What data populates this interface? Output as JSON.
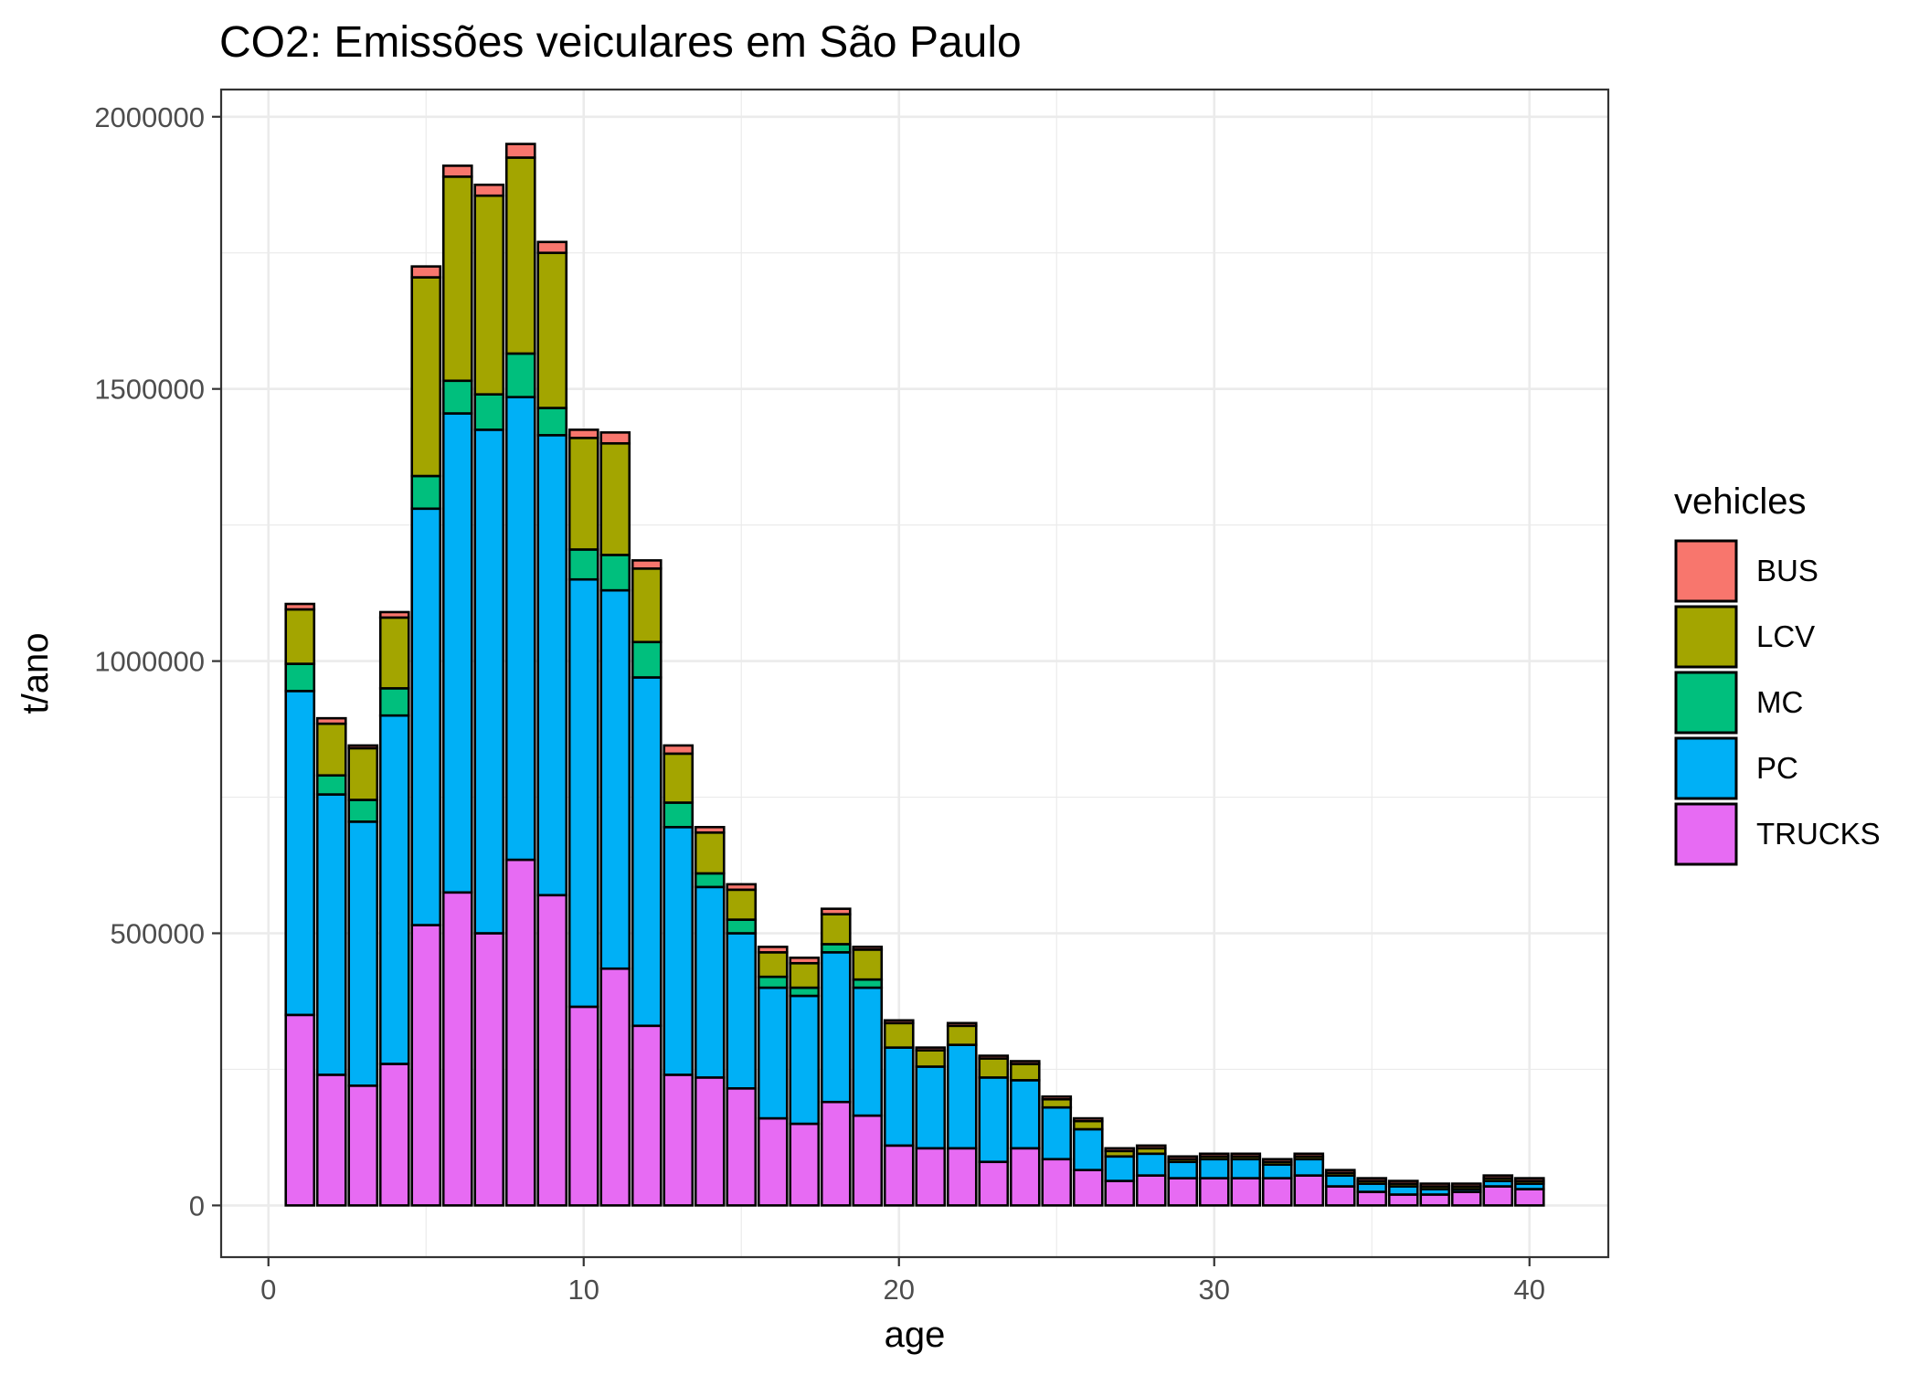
{
  "colors": {
    "BUS": "#F8766D",
    "LCV": "#A3A500",
    "MC": "#00BF7D",
    "PC": "#00B0F6",
    "TRUCKS": "#E76BF3",
    "grid": "#EBEBEB",
    "panel_border": "#333333",
    "bar_outline": "#000000",
    "text_dark": "#000000",
    "text_axis": "#4D4D4D"
  },
  "chart_data": {
    "type": "bar",
    "stacked": true,
    "title": "CO2: Emissões veiculares em São Paulo",
    "xlabel": "age",
    "ylabel": "t/ano",
    "xlim": [
      -1.5,
      42.5
    ],
    "ylim": [
      -95000,
      2050000
    ],
    "xticks": [
      0,
      10,
      20,
      30,
      40
    ],
    "xtick_labels": [
      "0",
      "10",
      "20",
      "30",
      "40"
    ],
    "yticks": [
      0,
      500000,
      1000000,
      1500000,
      2000000
    ],
    "ytick_labels": [
      "0",
      "500000",
      "1000000",
      "1500000",
      "2000000"
    ],
    "grid": true,
    "legend": {
      "title": "vehicles",
      "position": "right",
      "entries": [
        "BUS",
        "LCV",
        "MC",
        "PC",
        "TRUCKS"
      ]
    },
    "stack_order": [
      "TRUCKS",
      "PC",
      "MC",
      "LCV",
      "BUS"
    ],
    "x": [
      1,
      2,
      3,
      4,
      5,
      6,
      7,
      8,
      9,
      10,
      11,
      12,
      13,
      14,
      15,
      16,
      17,
      18,
      19,
      20,
      21,
      22,
      23,
      24,
      25,
      26,
      27,
      28,
      29,
      30,
      31,
      32,
      33,
      34,
      35,
      36,
      37,
      38,
      39,
      40
    ],
    "series": [
      {
        "name": "TRUCKS",
        "values": [
          350000,
          240000,
          220000,
          260000,
          515000,
          575000,
          500000,
          635000,
          570000,
          365000,
          435000,
          330000,
          240000,
          235000,
          215000,
          160000,
          150000,
          190000,
          165000,
          110000,
          105000,
          105000,
          80000,
          105000,
          85000,
          65000,
          45000,
          55000,
          50000,
          50000,
          50000,
          50000,
          55000,
          35000,
          25000,
          20000,
          20000,
          25000,
          35000,
          30000
        ]
      },
      {
        "name": "PC",
        "values": [
          595000,
          515000,
          485000,
          640000,
          765000,
          880000,
          925000,
          850000,
          845000,
          785000,
          695000,
          640000,
          455000,
          350000,
          285000,
          240000,
          235000,
          275000,
          235000,
          180000,
          150000,
          190000,
          155000,
          125000,
          95000,
          75000,
          45000,
          40000,
          30000,
          35000,
          35000,
          25000,
          30000,
          20000,
          15000,
          15000,
          10000,
          5000,
          10000,
          10000
        ]
      },
      {
        "name": "MC",
        "values": [
          50000,
          35000,
          40000,
          50000,
          60000,
          60000,
          65000,
          80000,
          50000,
          55000,
          65000,
          65000,
          45000,
          25000,
          25000,
          20000,
          15000,
          15000,
          15000,
          0,
          0,
          0,
          0,
          0,
          0,
          0,
          0,
          0,
          0,
          0,
          0,
          0,
          0,
          0,
          0,
          0,
          0,
          0,
          0,
          0
        ]
      },
      {
        "name": "LCV",
        "values": [
          100000,
          95000,
          95000,
          130000,
          365000,
          375000,
          365000,
          360000,
          285000,
          205000,
          205000,
          135000,
          90000,
          75000,
          55000,
          45000,
          45000,
          55000,
          55000,
          45000,
          30000,
          35000,
          35000,
          30000,
          15000,
          15000,
          10000,
          10000,
          5000,
          5000,
          5000,
          5000,
          5000,
          5000,
          5000,
          5000,
          5000,
          5000,
          5000,
          5000
        ]
      },
      {
        "name": "BUS",
        "values": [
          10000,
          10000,
          5000,
          10000,
          20000,
          20000,
          20000,
          25000,
          20000,
          15000,
          20000,
          15000,
          15000,
          10000,
          10000,
          10000,
          10000,
          10000,
          5000,
          5000,
          5000,
          5000,
          5000,
          5000,
          5000,
          5000,
          5000,
          5000,
          5000,
          5000,
          5000,
          5000,
          5000,
          5000,
          5000,
          5000,
          5000,
          5000,
          5000,
          5000
        ]
      }
    ]
  }
}
